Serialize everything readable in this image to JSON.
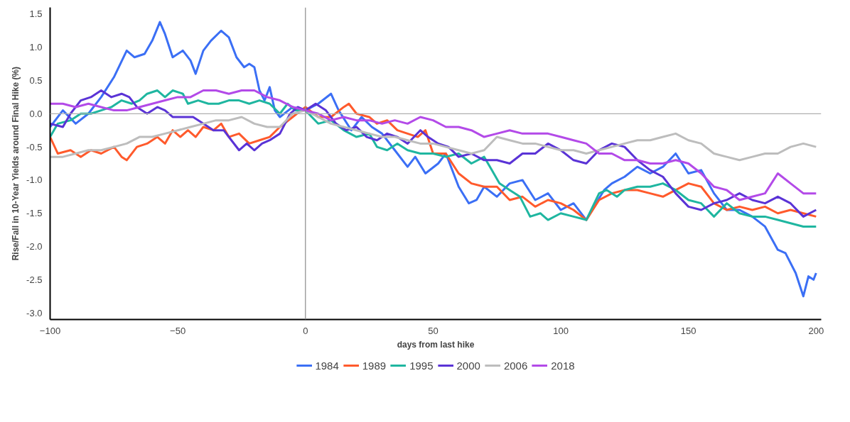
{
  "chart_data": {
    "type": "line",
    "xlabel": "days from last hike",
    "ylabel": "Rise/Fall in 10-Year Yields around Final Hike (%)",
    "xlim": [
      -100,
      202
    ],
    "ylim": [
      -3.1,
      1.6
    ],
    "xticks": [
      -100,
      -50,
      0,
      50,
      100,
      150,
      200
    ],
    "yticks": [
      {
        "value": -3,
        "label": "-3.0"
      },
      {
        "value": -2.5,
        "label": "-2.5"
      },
      {
        "value": -2,
        "label": "-2.0"
      },
      {
        "value": -1.5,
        "label": "-1.5"
      },
      {
        "value": -1,
        "label": "-1.0"
      },
      {
        "value": -0.5,
        "label": "-0.5"
      },
      {
        "value": 0,
        "label": "0.0"
      },
      {
        "value": 0.5,
        "label": "0.5"
      },
      {
        "value": 1,
        "label": "1.0"
      },
      {
        "value": 1.5,
        "label": "1.5"
      }
    ],
    "grid": false,
    "legend": "bottom",
    "marker": "none",
    "line_style": "solid",
    "ref_lines": [
      {
        "axis": "x",
        "value": 0,
        "color": "#8c8c8c"
      },
      {
        "axis": "y",
        "value": 0,
        "color": "#b0b0b0"
      }
    ],
    "series": [
      {
        "name": "1984",
        "color": "#3b6ff5",
        "x": [
          -100,
          -95,
          -90,
          -85,
          -80,
          -75,
          -70,
          -67,
          -63,
          -60,
          -57,
          -55,
          -52,
          -48,
          -45,
          -43,
          -40,
          -37,
          -33,
          -30,
          -27,
          -24,
          -22,
          -20,
          -18,
          -16,
          -14,
          -12,
          -10,
          -5,
          0,
          5,
          10,
          13,
          18,
          22,
          26,
          30,
          35,
          40,
          43,
          47,
          52,
          55,
          60,
          64,
          67,
          70,
          75,
          80,
          85,
          90,
          95,
          100,
          105,
          110,
          113,
          117,
          120,
          125,
          130,
          135,
          140,
          145,
          150,
          155,
          160,
          165,
          170,
          175,
          180,
          185,
          188,
          192,
          195,
          197,
          199,
          200
        ],
        "values": [
          -0.2,
          0.05,
          -0.15,
          0.0,
          0.25,
          0.55,
          0.95,
          0.85,
          0.9,
          1.1,
          1.38,
          1.2,
          0.85,
          0.95,
          0.8,
          0.6,
          0.95,
          1.1,
          1.25,
          1.15,
          0.85,
          0.7,
          0.75,
          0.7,
          0.35,
          0.2,
          0.4,
          0.05,
          -0.05,
          0.1,
          0.05,
          0.15,
          0.3,
          0.05,
          -0.25,
          -0.05,
          -0.2,
          -0.3,
          -0.55,
          -0.8,
          -0.65,
          -0.9,
          -0.75,
          -0.6,
          -1.1,
          -1.35,
          -1.3,
          -1.1,
          -1.25,
          -1.05,
          -1.0,
          -1.3,
          -1.2,
          -1.45,
          -1.35,
          -1.6,
          -1.4,
          -1.15,
          -1.05,
          -0.95,
          -0.8,
          -0.9,
          -0.8,
          -0.6,
          -0.9,
          -0.85,
          -1.2,
          -1.45,
          -1.45,
          -1.55,
          -1.7,
          -2.05,
          -2.1,
          -2.4,
          -2.75,
          -2.45,
          -2.5,
          -2.4
        ]
      },
      {
        "name": "1989",
        "color": "#ff5a2c",
        "x": [
          -100,
          -97,
          -92,
          -88,
          -84,
          -80,
          -75,
          -72,
          -70,
          -66,
          -62,
          -58,
          -55,
          -52,
          -49,
          -46,
          -43,
          -40,
          -36,
          -33,
          -30,
          -26,
          -22,
          -18,
          -14,
          -10,
          -5,
          0,
          5,
          10,
          15,
          17,
          20,
          25,
          28,
          32,
          36,
          40,
          44,
          47,
          50,
          55,
          60,
          65,
          70,
          75,
          80,
          85,
          90,
          95,
          100,
          105,
          110,
          115,
          120,
          125,
          130,
          135,
          140,
          145,
          150,
          155,
          160,
          165,
          170,
          175,
          180,
          185,
          190,
          195,
          200
        ],
        "values": [
          -0.35,
          -0.6,
          -0.55,
          -0.65,
          -0.55,
          -0.6,
          -0.5,
          -0.65,
          -0.7,
          -0.5,
          -0.45,
          -0.35,
          -0.45,
          -0.25,
          -0.35,
          -0.25,
          -0.35,
          -0.2,
          -0.25,
          -0.15,
          -0.35,
          -0.3,
          -0.45,
          -0.4,
          -0.35,
          -0.2,
          -0.05,
          0.1,
          -0.05,
          -0.05,
          0.1,
          0.15,
          0.0,
          -0.05,
          -0.15,
          -0.1,
          -0.25,
          -0.3,
          -0.35,
          -0.25,
          -0.6,
          -0.6,
          -0.9,
          -1.05,
          -1.1,
          -1.1,
          -1.3,
          -1.25,
          -1.4,
          -1.3,
          -1.35,
          -1.45,
          -1.6,
          -1.3,
          -1.2,
          -1.15,
          -1.15,
          -1.2,
          -1.25,
          -1.15,
          -1.05,
          -1.1,
          -1.35,
          -1.45,
          -1.4,
          -1.45,
          -1.4,
          -1.5,
          -1.45,
          -1.5,
          -1.55
        ]
      },
      {
        "name": "1995",
        "color": "#1fb6a0",
        "x": [
          -100,
          -97,
          -92,
          -88,
          -84,
          -80,
          -76,
          -72,
          -68,
          -65,
          -62,
          -58,
          -55,
          -52,
          -48,
          -46,
          -42,
          -38,
          -34,
          -30,
          -26,
          -22,
          -18,
          -14,
          -10,
          -7,
          -4,
          0,
          5,
          10,
          15,
          20,
          25,
          28,
          32,
          36,
          40,
          45,
          50,
          55,
          60,
          65,
          70,
          73,
          76,
          80,
          84,
          88,
          92,
          95,
          100,
          105,
          110,
          115,
          118,
          122,
          125,
          130,
          135,
          140,
          145,
          150,
          155,
          160,
          165,
          170,
          175,
          180,
          185,
          190,
          195,
          200
        ],
        "values": [
          -0.35,
          -0.15,
          -0.1,
          0.0,
          0.0,
          0.05,
          0.1,
          0.2,
          0.15,
          0.2,
          0.3,
          0.35,
          0.25,
          0.35,
          0.3,
          0.15,
          0.2,
          0.15,
          0.15,
          0.2,
          0.2,
          0.15,
          0.2,
          0.15,
          0.0,
          0.15,
          0.05,
          0.05,
          -0.15,
          -0.1,
          -0.25,
          -0.35,
          -0.3,
          -0.5,
          -0.55,
          -0.45,
          -0.55,
          -0.6,
          -0.6,
          -0.65,
          -0.6,
          -0.75,
          -0.65,
          -0.85,
          -1.05,
          -1.15,
          -1.25,
          -1.55,
          -1.5,
          -1.6,
          -1.5,
          -1.55,
          -1.6,
          -1.2,
          -1.15,
          -1.25,
          -1.15,
          -1.1,
          -1.1,
          -1.05,
          -1.15,
          -1.3,
          -1.35,
          -1.55,
          -1.35,
          -1.5,
          -1.55,
          -1.55,
          -1.6,
          -1.65,
          -1.7,
          -1.7
        ]
      },
      {
        "name": "2000",
        "color": "#5a33d6",
        "x": [
          -100,
          -95,
          -92,
          -88,
          -84,
          -80,
          -76,
          -72,
          -69,
          -66,
          -62,
          -58,
          -55,
          -52,
          -48,
          -44,
          -40,
          -36,
          -32,
          -29,
          -26,
          -23,
          -20,
          -17,
          -14,
          -10,
          -6,
          -3,
          0,
          4,
          8,
          12,
          16,
          20,
          24,
          28,
          32,
          36,
          40,
          45,
          48,
          52,
          56,
          60,
          65,
          70,
          75,
          80,
          85,
          90,
          95,
          100,
          105,
          110,
          115,
          120,
          125,
          130,
          135,
          140,
          145,
          150,
          155,
          160,
          165,
          170,
          175,
          180,
          185,
          190,
          195,
          200
        ],
        "values": [
          -0.15,
          -0.2,
          0.0,
          0.2,
          0.25,
          0.35,
          0.25,
          0.3,
          0.25,
          0.1,
          0.0,
          0.1,
          0.05,
          -0.05,
          -0.05,
          -0.05,
          -0.15,
          -0.25,
          -0.25,
          -0.4,
          -0.55,
          -0.45,
          -0.55,
          -0.45,
          -0.4,
          -0.3,
          0.0,
          0.1,
          0.05,
          0.15,
          0.05,
          -0.15,
          -0.25,
          -0.2,
          -0.35,
          -0.4,
          -0.3,
          -0.35,
          -0.45,
          -0.25,
          -0.35,
          -0.45,
          -0.5,
          -0.65,
          -0.6,
          -0.7,
          -0.7,
          -0.75,
          -0.6,
          -0.6,
          -0.45,
          -0.55,
          -0.7,
          -0.75,
          -0.55,
          -0.45,
          -0.5,
          -0.7,
          -0.85,
          -0.95,
          -1.2,
          -1.4,
          -1.45,
          -1.35,
          -1.3,
          -1.2,
          -1.3,
          -1.35,
          -1.25,
          -1.35,
          -1.55,
          -1.45
        ]
      },
      {
        "name": "2006",
        "color": "#bdbdbd",
        "x": [
          -100,
          -95,
          -90,
          -85,
          -80,
          -75,
          -70,
          -65,
          -60,
          -55,
          -50,
          -45,
          -40,
          -35,
          -30,
          -25,
          -20,
          -15,
          -10,
          -5,
          0,
          5,
          10,
          15,
          20,
          25,
          30,
          35,
          40,
          45,
          50,
          55,
          60,
          65,
          70,
          75,
          80,
          85,
          90,
          95,
          100,
          105,
          110,
          115,
          120,
          125,
          130,
          135,
          140,
          145,
          150,
          155,
          160,
          165,
          170,
          175,
          180,
          185,
          190,
          195,
          200
        ],
        "values": [
          -0.65,
          -0.65,
          -0.6,
          -0.55,
          -0.55,
          -0.5,
          -0.45,
          -0.35,
          -0.35,
          -0.3,
          -0.25,
          -0.2,
          -0.15,
          -0.1,
          -0.1,
          -0.05,
          -0.15,
          -0.2,
          -0.2,
          0.0,
          0.05,
          -0.05,
          -0.15,
          -0.2,
          -0.25,
          -0.3,
          -0.35,
          -0.35,
          -0.4,
          -0.45,
          -0.45,
          -0.5,
          -0.55,
          -0.6,
          -0.55,
          -0.35,
          -0.4,
          -0.45,
          -0.45,
          -0.5,
          -0.55,
          -0.55,
          -0.6,
          -0.55,
          -0.5,
          -0.45,
          -0.4,
          -0.4,
          -0.35,
          -0.3,
          -0.4,
          -0.45,
          -0.6,
          -0.65,
          -0.7,
          -0.65,
          -0.6,
          -0.6,
          -0.5,
          -0.45,
          -0.5
        ]
      },
      {
        "name": "2018",
        "color": "#b34ae8",
        "x": [
          -100,
          -95,
          -90,
          -85,
          -80,
          -75,
          -70,
          -65,
          -60,
          -55,
          -50,
          -45,
          -40,
          -35,
          -30,
          -25,
          -20,
          -15,
          -10,
          -5,
          0,
          5,
          10,
          15,
          20,
          25,
          30,
          35,
          40,
          45,
          50,
          55,
          60,
          65,
          70,
          75,
          80,
          85,
          90,
          95,
          100,
          105,
          110,
          115,
          120,
          125,
          130,
          135,
          140,
          145,
          150,
          155,
          160,
          165,
          170,
          175,
          180,
          185,
          190,
          195,
          200
        ],
        "values": [
          0.15,
          0.15,
          0.1,
          0.15,
          0.1,
          0.05,
          0.05,
          0.1,
          0.15,
          0.2,
          0.25,
          0.25,
          0.35,
          0.35,
          0.3,
          0.35,
          0.35,
          0.25,
          0.2,
          0.1,
          0.05,
          0.0,
          -0.1,
          -0.05,
          -0.1,
          -0.1,
          -0.15,
          -0.1,
          -0.15,
          -0.05,
          -0.1,
          -0.2,
          -0.2,
          -0.25,
          -0.35,
          -0.3,
          -0.25,
          -0.3,
          -0.3,
          -0.3,
          -0.35,
          -0.4,
          -0.45,
          -0.6,
          -0.6,
          -0.7,
          -0.7,
          -0.75,
          -0.75,
          -0.7,
          -0.75,
          -0.9,
          -1.1,
          -1.15,
          -1.3,
          -1.25,
          -1.2,
          -0.9,
          -1.05,
          -1.2,
          -1.2
        ]
      }
    ]
  }
}
